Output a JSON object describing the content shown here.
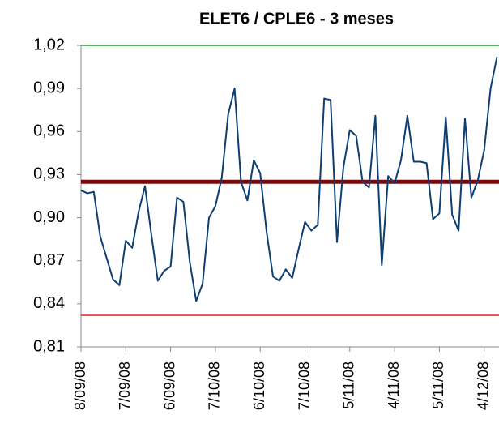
{
  "chart_data": {
    "type": "line",
    "title": "ELET6 / CPLE6 - 3 meses",
    "categories": [
      "8/09/08",
      null,
      null,
      null,
      null,
      null,
      null,
      "7/09/08",
      null,
      null,
      null,
      null,
      null,
      null,
      "6/09/08",
      null,
      null,
      null,
      null,
      null,
      null,
      "7/10/08",
      null,
      null,
      null,
      null,
      null,
      null,
      "6/10/08",
      null,
      null,
      null,
      null,
      null,
      null,
      "7/10/08",
      null,
      null,
      null,
      null,
      null,
      null,
      "5/11/08",
      null,
      null,
      null,
      null,
      null,
      null,
      "4/11/08",
      null,
      null,
      null,
      null,
      null,
      null,
      "5/11/08",
      null,
      null,
      null,
      null,
      null,
      null,
      "4/12/08",
      null,
      null
    ],
    "series": [
      {
        "color": "#0d3f75",
        "values": [
          0.919,
          0.917,
          0.918,
          0.887,
          0.872,
          0.857,
          0.853,
          0.884,
          0.879,
          0.904,
          0.922,
          0.888,
          0.856,
          0.863,
          0.866,
          0.914,
          0.911,
          0.869,
          0.842,
          0.854,
          0.9,
          0.908,
          0.928,
          0.972,
          0.99,
          0.925,
          0.912,
          0.94,
          0.931,
          0.89,
          0.859,
          0.856,
          0.864,
          0.858,
          0.878,
          0.897,
          0.891,
          0.895,
          0.983,
          0.982,
          0.883,
          0.935,
          0.961,
          0.957,
          0.925,
          0.921,
          0.971,
          0.867,
          0.929,
          0.924,
          0.94,
          0.971,
          0.939,
          0.939,
          0.938,
          0.899,
          0.903,
          0.97,
          0.902,
          0.891,
          0.969,
          0.914,
          0.926,
          0.947,
          0.99,
          1.012
        ]
      }
    ],
    "reference_lines": [
      {
        "value": 1.02,
        "color": "#2e9a2e"
      },
      {
        "value": 0.925,
        "color": "#7a0a0a"
      },
      {
        "value": 0.832,
        "color": "#e02020"
      }
    ],
    "ylim": [
      0.81,
      1.02
    ],
    "yticks": [
      {
        "value": 0.81,
        "label": "0,81"
      },
      {
        "value": 0.84,
        "label": "0,84"
      },
      {
        "value": 0.87,
        "label": "0,87"
      },
      {
        "value": 0.9,
        "label": "0,90"
      },
      {
        "value": 0.93,
        "label": "0,93"
      },
      {
        "value": 0.96,
        "label": "0,96"
      },
      {
        "value": 0.99,
        "label": "0,99"
      },
      {
        "value": 1.02,
        "label": "1,02"
      }
    ],
    "grid": false
  }
}
